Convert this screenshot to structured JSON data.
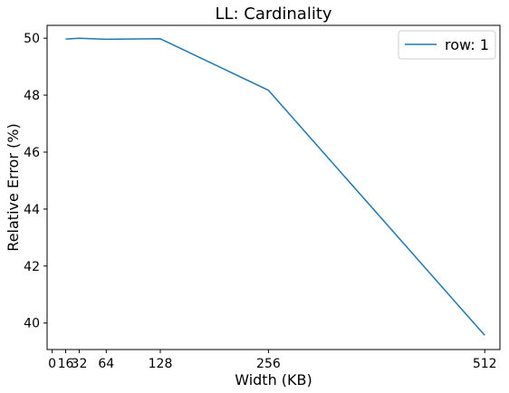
{
  "chart_data": {
    "type": "line",
    "title": "LL: Cardinality",
    "xlabel": "Width (KB)",
    "ylabel": "Relative Error (%)",
    "x_ticks": [
      0,
      16,
      32,
      64,
      128,
      256,
      512
    ],
    "y_ticks": [
      40,
      42,
      44,
      46,
      48,
      50
    ],
    "xlim": [
      -6,
      530
    ],
    "ylim": [
      39.07,
      50.45
    ],
    "grid": false,
    "legend_position": "top-right",
    "series": [
      {
        "name": "row: 1",
        "color": "#1f77b4",
        "x": [
          16,
          32,
          64,
          128,
          256,
          512
        ],
        "y": [
          49.97,
          50.0,
          49.96,
          49.98,
          48.17,
          39.57
        ]
      }
    ]
  }
}
